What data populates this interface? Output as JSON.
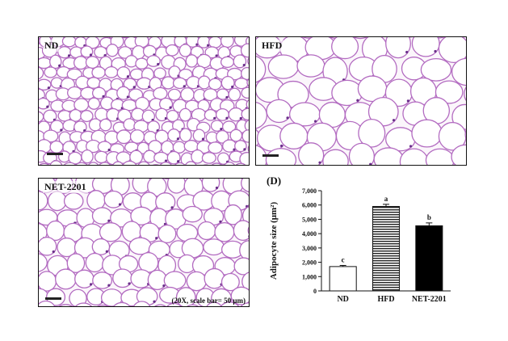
{
  "panels": {
    "nd": {
      "label": "ND"
    },
    "hfd": {
      "label": "HFD"
    },
    "net": {
      "label": "NET-2201",
      "caption": "(20X, scale bar= 50 μm)"
    }
  },
  "chart_panel_label": "(D)",
  "colors": {
    "stain_border": "#b36cc1",
    "nuclei": "#6a2f8a",
    "background": "#fbf6fb"
  },
  "chart_data": {
    "type": "bar",
    "categories": [
      "ND",
      "HFD",
      "NET-2201"
    ],
    "values": [
      1700,
      5900,
      4550
    ],
    "errors": [
      80,
      150,
      200
    ],
    "significance": [
      "c",
      "a",
      "b"
    ],
    "fills": [
      "white",
      "horizontal-stripes",
      "black"
    ],
    "ylabel": "Adipocyte size (μm²)",
    "ylim": [
      0,
      7000
    ],
    "yticks": [
      "0",
      "1,000",
      "2,000",
      "3,000",
      "4,000",
      "5,000",
      "6,000",
      "7,000"
    ],
    "grid": false
  }
}
